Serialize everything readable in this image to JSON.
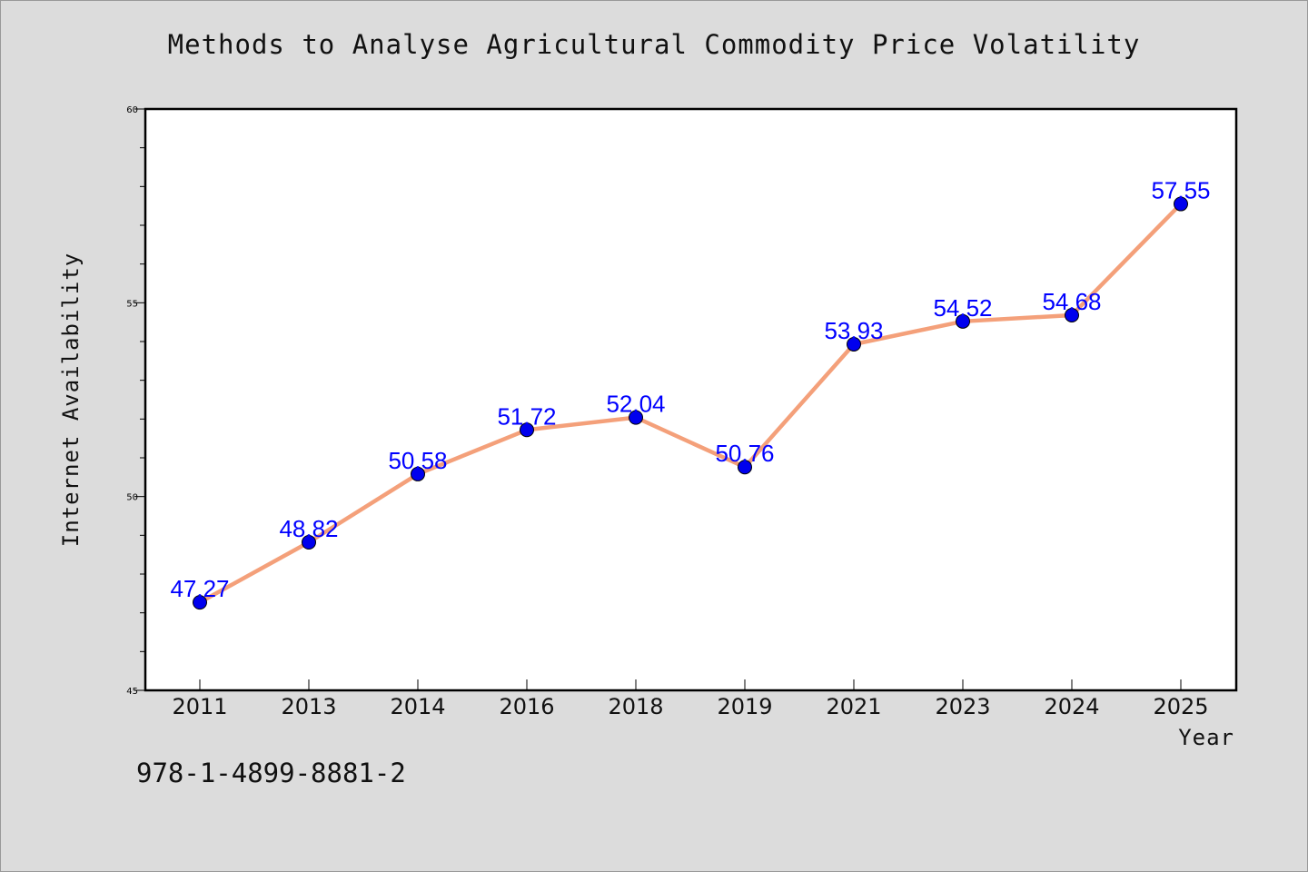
{
  "chart_data": {
    "type": "line",
    "title": "Methods to Analyse Agricultural Commodity Price Volatility",
    "xlabel": "Year",
    "ylabel": "Internet Availability",
    "categories": [
      "2011",
      "2013",
      "2014",
      "2016",
      "2018",
      "2019",
      "2021",
      "2023",
      "2024",
      "2025"
    ],
    "series": [
      {
        "values": [
          47.27,
          48.82,
          50.58,
          51.72,
          52.04,
          50.76,
          53.93,
          54.52,
          54.68,
          57.55
        ]
      }
    ],
    "data_labels": [
      "47.27",
      "48.82",
      "50.58",
      "51.72",
      "52.04",
      "50.76",
      "53.93",
      "54.52",
      "54.68",
      "57.55"
    ],
    "ylim": [
      45,
      60
    ],
    "y_ticks": [
      "45",
      "50",
      "55",
      "60"
    ],
    "grid": false,
    "line_color": "#f4a07a",
    "marker_color": "#0000ee",
    "label_color": "#0000ff"
  },
  "footer": {
    "isbn": "978-1-4899-8881-2"
  }
}
